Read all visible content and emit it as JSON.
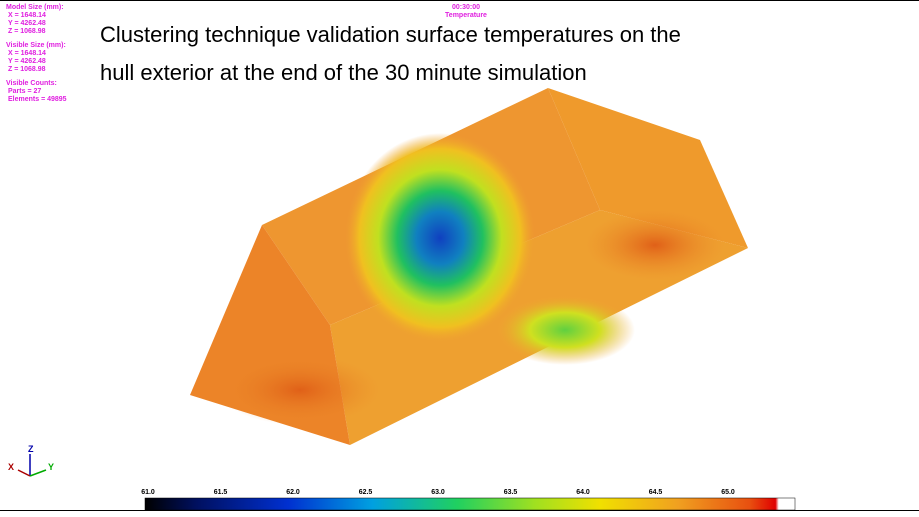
{
  "info": {
    "model_size": {
      "heading": "Model Size (mm):",
      "x": "X = 1648.14",
      "y": "Y = 4262.48",
      "z": "Z = 1068.98"
    },
    "visible_size": {
      "heading": "Visible Size (mm):",
      "x": "X = 1648.14",
      "y": "Y = 4262.48",
      "z": "Z = 1068.98"
    },
    "visible_counts": {
      "heading": "Visible Counts:",
      "parts": "Parts  = 27",
      "elements": "Elements = 49895"
    }
  },
  "header": {
    "time": "00:30:00",
    "quantity": "Temperature"
  },
  "title": {
    "lines": [
      "Clustering technique validation surface temperatures on the",
      "hull exterior at the end of the 30 minute simulation"
    ]
  },
  "triad": {
    "z": "Z",
    "x": "X",
    "y": "Y"
  },
  "colorbar": {
    "labels": [
      "61.0",
      "61.5",
      "62.0",
      "62.5",
      "63.0",
      "63.5",
      "64.0",
      "64.5",
      "65.0"
    ]
  }
}
